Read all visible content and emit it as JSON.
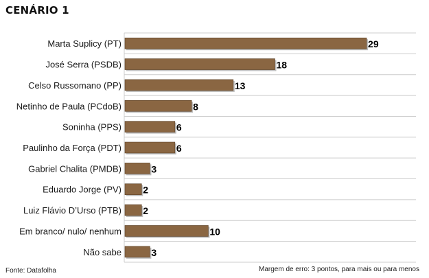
{
  "title": "CENÁRIO 1",
  "source": "Fonte: Datafolha",
  "margin_note": "Margem de erro: 3 pontos, para mais ou para menos",
  "colors": {
    "bar": "#8a6642",
    "bar_edge": "#5b4128",
    "grid": "#cccccc"
  },
  "chart_data": {
    "type": "bar",
    "orientation": "horizontal",
    "title": "CENÁRIO 1",
    "categories": [
      "Marta Suplicy (PT)",
      "José Serra (PSDB)",
      "Celso Russomano (PP)",
      "Netinho de Paula (PCdoB)",
      "Soninha (PPS)",
      "Paulinho da Força (PDT)",
      "Gabriel Chalita (PMDB)",
      "Eduardo Jorge (PV)",
      "Luiz Flávio D’Urso (PTB)",
      "Em branco/ nulo/ nenhum",
      "Não sabe"
    ],
    "values": [
      29,
      18,
      13,
      8,
      6,
      6,
      3,
      2,
      2,
      10,
      3
    ],
    "xlim": [
      0,
      35
    ],
    "grid": true,
    "data_labels": true
  }
}
